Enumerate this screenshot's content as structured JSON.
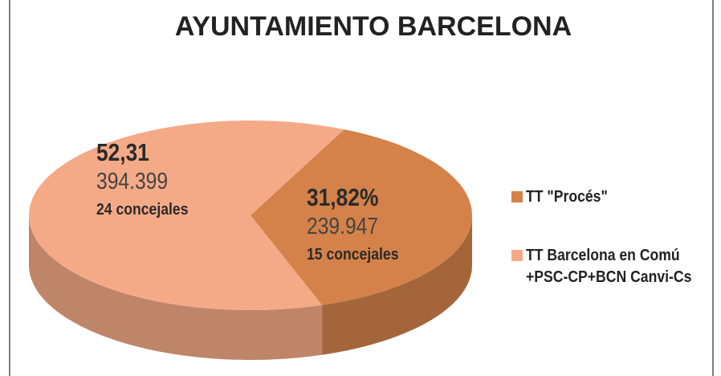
{
  "chart_data": {
    "type": "pie",
    "title": "AYUNTAMIENTO BARCELONA",
    "categories": [
      "TT \"Procés\"",
      "TT Barcelona en Comú\n+PSC-CP+BCN Canvi-Cs"
    ],
    "values": [
      31.82,
      52.31
    ],
    "value_labels": [
      "31,82%",
      "52,31"
    ],
    "vote_labels": [
      "239.947",
      "394.399"
    ],
    "seat_labels": [
      "15 concejales",
      "24 concejales"
    ],
    "colors": [
      "#d4824a",
      "#f5aa87"
    ]
  }
}
